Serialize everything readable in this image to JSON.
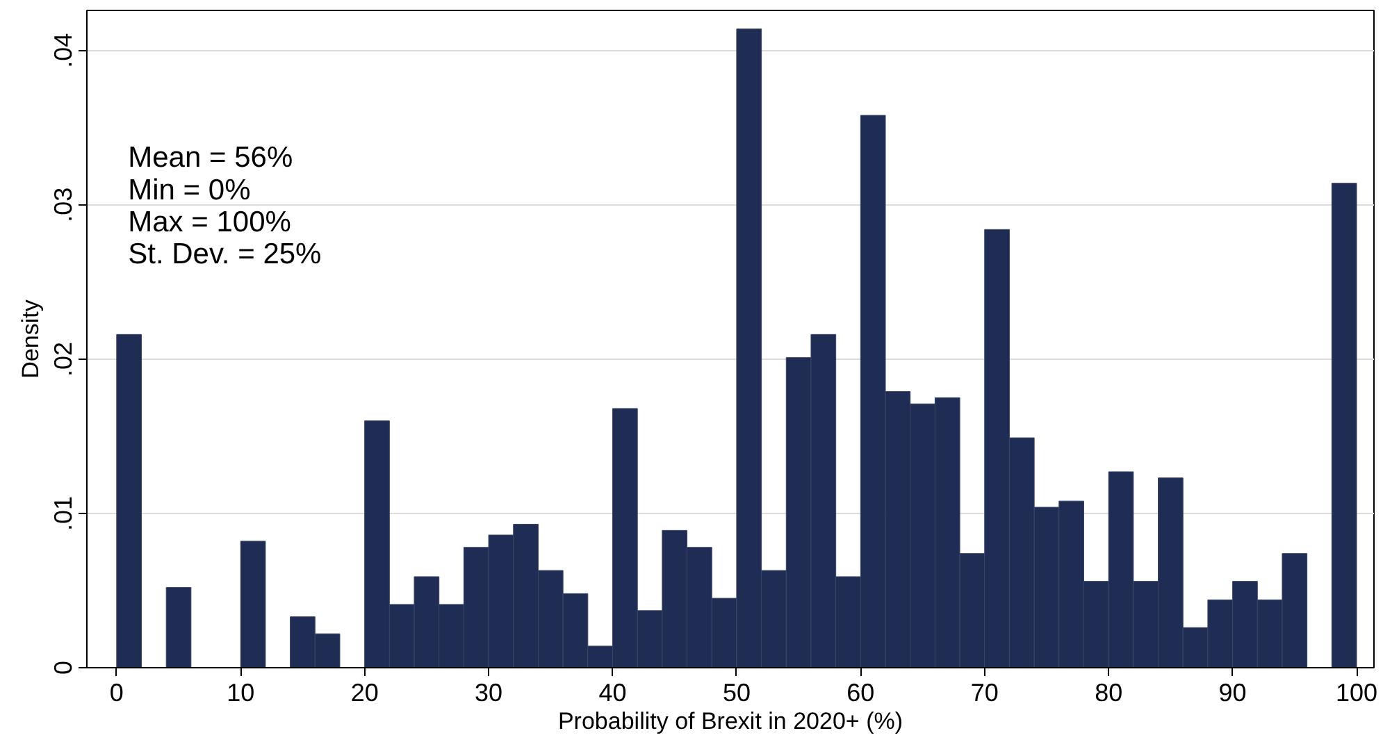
{
  "chart_data": {
    "type": "histogram",
    "xlabel": "Probability of Brexit in 2020+ (%)",
    "ylabel": "Density",
    "annotations": [
      "Mean = 56%",
      "Min = 0%",
      "Max = 100%",
      "St. Dev. = 25%"
    ],
    "bins": [
      0,
      2,
      4,
      6,
      8,
      10,
      12,
      14,
      16,
      18,
      20,
      22,
      24,
      26,
      28,
      30,
      32,
      34,
      36,
      38,
      40,
      42,
      44,
      46,
      48,
      50,
      52,
      54,
      56,
      58,
      60,
      62,
      64,
      66,
      68,
      70,
      72,
      74,
      76,
      78,
      80,
      82,
      84,
      86,
      88,
      90,
      92,
      94,
      96,
      98,
      100
    ],
    "values": [
      0.0216,
      0,
      0.0052,
      0,
      0,
      0.0082,
      0,
      0.0033,
      0.0022,
      0,
      0.016,
      0.0041,
      0.0059,
      0.0041,
      0.0078,
      0.0086,
      0.0093,
      0.0063,
      0.0048,
      0.0014,
      0.0168,
      0.0037,
      0.0089,
      0.0078,
      0.0045,
      0.0414,
      0.0063,
      0.0201,
      0.0216,
      0.0059,
      0.0358,
      0.0179,
      0.0171,
      0.0175,
      0.0074,
      0.0284,
      0.0149,
      0.0104,
      0.0108,
      0.0056,
      0.0127,
      0.0056,
      0.0123,
      0.0026,
      0.0044,
      0.0056,
      0.0044,
      0.0074,
      0,
      0.0314
    ],
    "color": "#1f2c54",
    "xlim": [
      -2.4,
      101.4
    ],
    "ylim": [
      0,
      0.0426
    ],
    "xticks": [
      0,
      10,
      20,
      30,
      40,
      50,
      60,
      70,
      80,
      90,
      100
    ],
    "yticks": [
      0,
      {
        "value": 0.01,
        "label": ".01"
      },
      {
        "value": 0.02,
        "label": ".02"
      },
      {
        "value": 0.03,
        "label": ".03"
      },
      {
        "value": 0.04,
        "label": ".04"
      }
    ],
    "grid": "y"
  }
}
